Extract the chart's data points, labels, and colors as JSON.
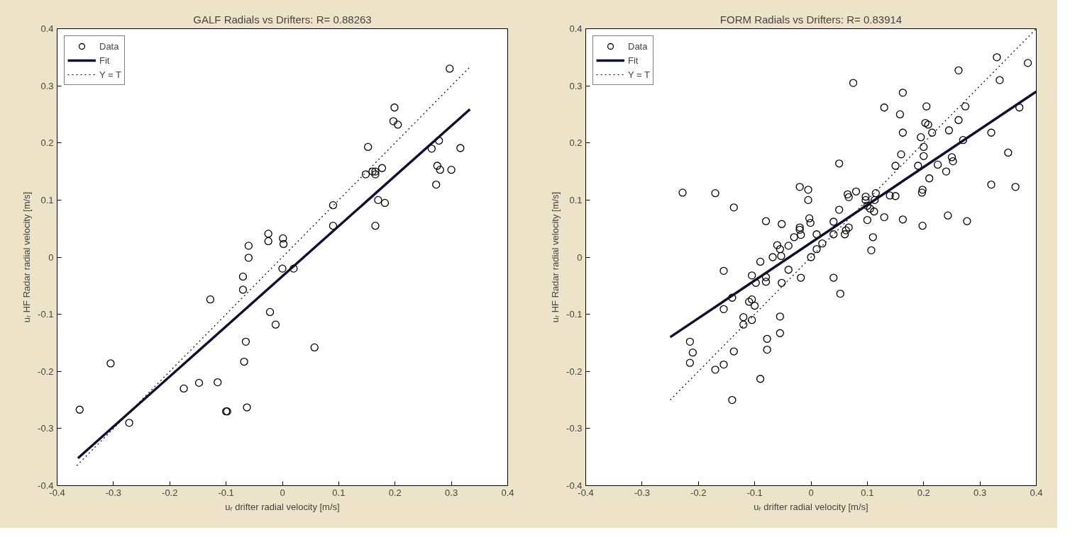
{
  "chart_data": [
    {
      "type": "scatter",
      "title": "GALF Radials vs Drifters: R= 0.88263",
      "xlabel": "uᵣ drifter radial velocity [m/s]",
      "ylabel": "uᵣ HF Radar radial velocity [m/s]",
      "xlim": [
        -0.4,
        0.4
      ],
      "ylim": [
        -0.4,
        0.4
      ],
      "xticks": [
        -0.4,
        -0.3,
        -0.2,
        -0.1,
        0,
        0.1,
        0.2,
        0.3,
        0.4
      ],
      "yticks": [
        -0.4,
        -0.3,
        -0.2,
        -0.1,
        0,
        0.1,
        0.2,
        0.3,
        0.4
      ],
      "grid": false,
      "legend": "top left",
      "series": [
        {
          "name": "Data",
          "marker": "circle",
          "color": "#000000",
          "x": [
            -0.36,
            -0.305,
            -0.272,
            -0.175,
            -0.148,
            -0.128,
            -0.115,
            -0.1,
            -0.098,
            -0.07,
            -0.07,
            -0.068,
            -0.065,
            -0.063,
            -0.06,
            -0.06,
            -0.025,
            -0.025,
            -0.022,
            -0.012,
            0.0,
            0.001,
            0.002,
            0.02,
            0.057,
            0.09,
            0.09,
            0.148,
            0.152,
            0.16,
            0.165,
            0.165,
            0.165,
            0.17,
            0.177,
            0.182,
            0.197,
            0.199,
            0.205,
            0.265,
            0.273,
            0.275,
            0.278,
            0.28,
            0.297,
            0.3,
            0.316
          ],
          "values": [
            -0.267,
            -0.186,
            -0.29,
            -0.23,
            -0.22,
            -0.074,
            -0.219,
            -0.27,
            -0.27,
            -0.034,
            -0.057,
            -0.183,
            -0.148,
            -0.263,
            0.02,
            -0.001,
            0.041,
            0.028,
            -0.096,
            -0.118,
            -0.02,
            0.033,
            0.023,
            -0.02,
            -0.158,
            0.091,
            0.055,
            0.145,
            0.193,
            0.15,
            0.145,
            0.15,
            0.055,
            0.1,
            0.156,
            0.095,
            0.238,
            0.262,
            0.232,
            0.19,
            0.127,
            0.16,
            0.204,
            0.153,
            0.33,
            0.153,
            0.191
          ]
        },
        {
          "name": "Fit",
          "type": "line",
          "line_style": "solid",
          "color": "#0d0f2e",
          "x": [
            -0.363,
            0.333
          ],
          "values": [
            -0.352,
            0.259
          ]
        },
        {
          "name": "Y = T",
          "type": "line",
          "line_style": "dotted",
          "color": "#000000",
          "x": [
            -0.365,
            0.333
          ],
          "values": [
            -0.365,
            0.333
          ]
        }
      ]
    },
    {
      "type": "scatter",
      "title": "FORM Radials vs Drifters: R= 0.83914",
      "xlabel": "uᵣ drifter radial velocity [m/s]",
      "ylabel": "uᵣ HF Radar radial velocity [m/s]",
      "xlim": [
        -0.4,
        0.4
      ],
      "ylim": [
        -0.4,
        0.4
      ],
      "xticks": [
        -0.4,
        -0.3,
        -0.2,
        -0.1,
        0,
        0.1,
        0.2,
        0.3,
        0.4
      ],
      "yticks": [
        -0.4,
        -0.3,
        -0.2,
        -0.1,
        0,
        0.1,
        0.2,
        0.3,
        0.4
      ],
      "grid": false,
      "legend": "top left",
      "series": [
        {
          "name": "Data",
          "marker": "circle",
          "color": "#000000",
          "x": [
            -0.228,
            -0.17,
            -0.137,
            -0.155,
            -0.215,
            -0.21,
            -0.215,
            -0.17,
            -0.155,
            -0.137,
            -0.14,
            -0.14,
            -0.155,
            -0.12,
            -0.12,
            -0.105,
            -0.105,
            -0.1,
            -0.11,
            -0.105,
            -0.098,
            -0.09,
            -0.09,
            -0.08,
            -0.08,
            -0.078,
            -0.078,
            -0.08,
            -0.068,
            -0.06,
            -0.055,
            -0.053,
            -0.052,
            -0.052,
            -0.055,
            -0.055,
            -0.04,
            -0.04,
            -0.03,
            -0.02,
            -0.02,
            -0.02,
            -0.018,
            -0.018,
            -0.005,
            -0.005,
            -0.003,
            -0.001,
            0.0,
            0.01,
            0.01,
            0.02,
            0.04,
            0.04,
            0.04,
            0.05,
            0.05,
            0.052,
            0.06,
            0.062,
            0.065,
            0.067,
            0.067,
            0.075,
            0.08,
            0.097,
            0.097,
            0.1,
            0.1,
            0.105,
            0.107,
            0.11,
            0.112,
            0.113,
            0.115,
            0.13,
            0.13,
            0.14,
            0.15,
            0.15,
            0.158,
            0.16,
            0.163,
            0.163,
            0.163,
            0.19,
            0.195,
            0.197,
            0.198,
            0.198,
            0.2,
            0.2,
            0.203,
            0.205,
            0.208,
            0.21,
            0.215,
            0.225,
            0.24,
            0.243,
            0.245,
            0.25,
            0.252,
            0.262,
            0.262,
            0.27,
            0.274,
            0.277,
            0.32,
            0.32,
            0.33,
            0.335,
            0.35,
            0.363,
            0.37,
            0.385
          ],
          "values": [
            0.113,
            0.112,
            0.087,
            -0.024,
            -0.148,
            -0.167,
            -0.185,
            -0.197,
            -0.188,
            -0.165,
            -0.25,
            -0.071,
            -0.091,
            -0.105,
            -0.118,
            -0.11,
            -0.074,
            -0.085,
            -0.078,
            -0.032,
            -0.045,
            -0.008,
            -0.213,
            -0.035,
            -0.043,
            -0.143,
            -0.162,
            0.063,
            0.0,
            0.021,
            0.014,
            0.002,
            0.058,
            -0.045,
            -0.104,
            -0.133,
            0.02,
            -0.022,
            0.035,
            0.123,
            0.052,
            0.048,
            0.039,
            -0.036,
            0.118,
            0.1,
            0.068,
            0.06,
            0.0,
            0.04,
            0.014,
            0.024,
            0.04,
            0.062,
            -0.036,
            0.164,
            0.083,
            -0.064,
            0.04,
            0.047,
            0.11,
            0.105,
            0.052,
            0.305,
            0.115,
            0.106,
            0.1,
            0.065,
            0.09,
            0.085,
            0.012,
            0.035,
            0.08,
            0.1,
            0.112,
            0.262,
            0.07,
            0.108,
            0.107,
            0.16,
            0.25,
            0.18,
            0.288,
            0.218,
            0.066,
            0.16,
            0.21,
            0.113,
            0.118,
            0.055,
            0.177,
            0.193,
            0.235,
            0.264,
            0.232,
            0.138,
            0.218,
            0.162,
            0.15,
            0.073,
            0.222,
            0.175,
            0.168,
            0.24,
            0.327,
            0.205,
            0.264,
            0.063,
            0.127,
            0.218,
            0.35,
            0.31,
            0.183,
            0.123,
            0.262,
            0.34
          ]
        },
        {
          "name": "Fit",
          "type": "line",
          "line_style": "solid",
          "color": "#0d0f2e",
          "x": [
            -0.25,
            0.4
          ],
          "values": [
            -0.14,
            0.29
          ]
        },
        {
          "name": "Y = T",
          "type": "line",
          "line_style": "dotted",
          "color": "#000000",
          "x": [
            -0.25,
            0.4
          ],
          "values": [
            -0.25,
            0.4
          ]
        }
      ]
    }
  ]
}
